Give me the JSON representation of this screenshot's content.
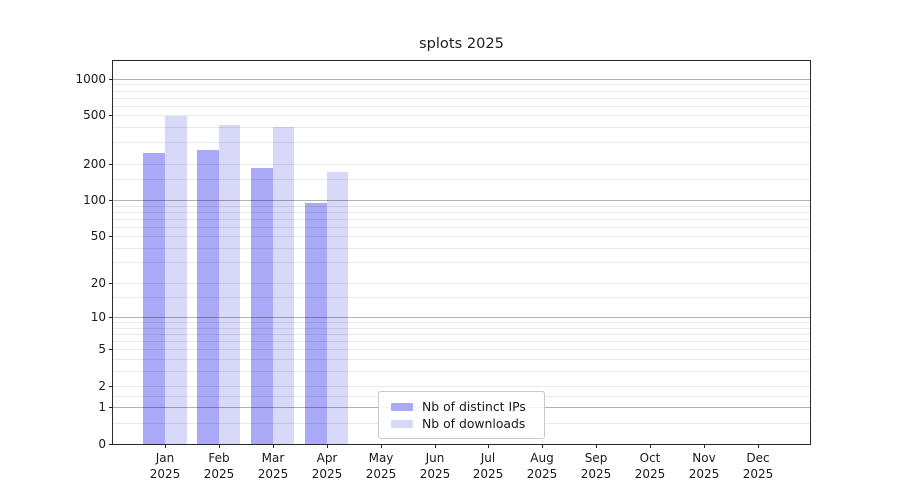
{
  "title": "splots 2025",
  "chart_data": {
    "type": "bar",
    "title": "splots 2025",
    "scale": "log1p",
    "grid": "on",
    "legend_position": "lower center",
    "months": [
      "Jan",
      "Feb",
      "Mar",
      "Apr",
      "May",
      "Jun",
      "Jul",
      "Aug",
      "Sep",
      "Oct",
      "Nov",
      "Dec"
    ],
    "year": "2025",
    "series": [
      {
        "name": "Nb of distinct IPs",
        "color": "#a9a9f7",
        "values": [
          245,
          260,
          185,
          95,
          null,
          null,
          null,
          null,
          null,
          null,
          null,
          null
        ]
      },
      {
        "name": "Nb of downloads",
        "color": "#d8d8f8",
        "values": [
          490,
          415,
          400,
          170,
          null,
          null,
          null,
          null,
          null,
          null,
          null,
          null
        ]
      }
    ],
    "yticks": [
      0,
      1,
      2,
      5,
      10,
      20,
      50,
      100,
      200,
      500,
      1000
    ],
    "grid_major_values": [
      1,
      10,
      100,
      1000
    ],
    "grid_minor_values": [
      0.5,
      1.5,
      2,
      3,
      4,
      5,
      6,
      7,
      8,
      9,
      15,
      20,
      30,
      40,
      50,
      60,
      70,
      80,
      90,
      150,
      200,
      300,
      400,
      500,
      600,
      700,
      800,
      900
    ],
    "ylim": [
      0,
      1400
    ],
    "xlabel": "",
    "ylabel": ""
  },
  "colors": {
    "spine": "#2b2b2b",
    "background": "#ffffff",
    "grid_major": "#b3b3b3",
    "grid_minor": "#e9e9e9"
  }
}
